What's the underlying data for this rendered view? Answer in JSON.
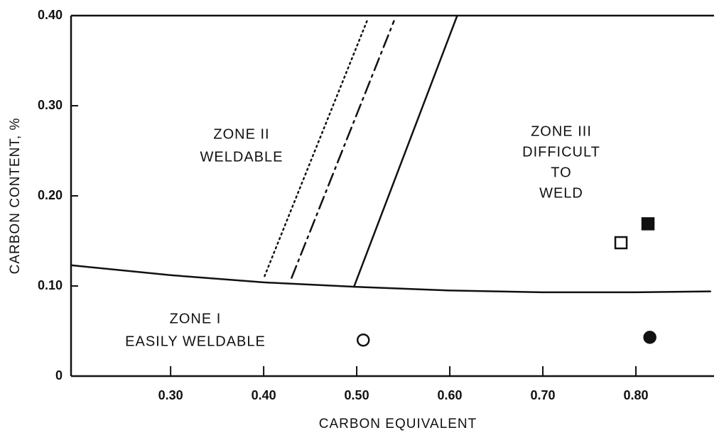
{
  "chart_data": {
    "type": "line",
    "xlabel": "CARBON EQUIVALENT",
    "ylabel": "CARBON CONTENT, %",
    "xlim": [
      0.193,
      0.884
    ],
    "ylim": [
      0,
      0.4
    ],
    "xticks": [
      {
        "value": 0.3,
        "label": "0.30"
      },
      {
        "value": 0.4,
        "label": "0.40"
      },
      {
        "value": 0.5,
        "label": "0.50"
      },
      {
        "value": 0.6,
        "label": "0.60"
      },
      {
        "value": 0.7,
        "label": "0.70"
      },
      {
        "value": 0.8,
        "label": "0.80"
      }
    ],
    "yticks": [
      0,
      {
        "value": 0.1,
        "label": "0.10"
      },
      {
        "value": 0.2,
        "label": "0.20"
      },
      {
        "value": 0.3,
        "label": "0.30"
      },
      {
        "value": 0.4,
        "label": "0.40"
      }
    ],
    "annotations": [
      {
        "lines": [
          "ZONE I",
          "EASILY WELDABLE"
        ]
      },
      {
        "lines": [
          "ZONE II",
          "WELDABLE"
        ]
      },
      {
        "lines": [
          "ZONE III",
          "DIFFICULT",
          "TO",
          "WELD"
        ]
      }
    ],
    "series": [
      {
        "color": "#111",
        "style": "solid",
        "x": [
          0.193,
          0.3,
          0.4,
          0.5,
          0.6,
          0.7,
          0.8,
          0.88
        ],
        "values": [
          0.123,
          0.112,
          0.104,
          0.099,
          0.095,
          0.093,
          0.093,
          0.094
        ]
      },
      {
        "color": "#111",
        "style": "solid",
        "x": [
          0.497,
          0.608
        ],
        "values": [
          0.099,
          0.4
        ]
      },
      {
        "color": "#111",
        "style": "dotted",
        "x": [
          0.401,
          0.511
        ],
        "values": [
          0.111,
          0.394
        ]
      },
      {
        "color": "#111",
        "style": "dashdot",
        "x": [
          0.43,
          0.54
        ],
        "values": [
          0.109,
          0.394
        ]
      },
      {
        "color": "#111",
        "marker": "open-circle",
        "x": [
          0.507
        ],
        "values": [
          0.04
        ]
      },
      {
        "color": "#111",
        "marker": "filled-circle",
        "x": [
          0.815
        ],
        "values": [
          0.043
        ]
      },
      {
        "color": "#111",
        "marker": "open-square",
        "x": [
          0.784
        ],
        "values": [
          0.148
        ]
      },
      {
        "color": "#111",
        "marker": "filled-square",
        "x": [
          0.813
        ],
        "values": [
          0.169
        ]
      }
    ]
  }
}
